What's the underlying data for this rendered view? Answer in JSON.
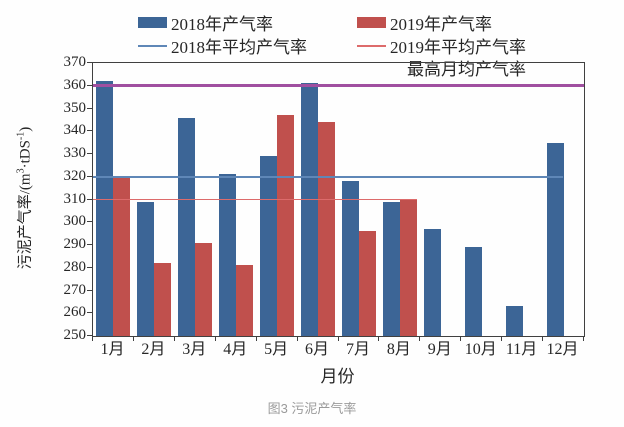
{
  "colors": {
    "bar_2018": "#3C6596",
    "bar_2019": "#C0504D",
    "avg_2018": "#5F87B7",
    "avg_2019": "#DD6B6B",
    "max_line": "#A04FA0",
    "axis": "#404040",
    "text": "#262626",
    "caption": "#9A9A9A"
  },
  "chart_data": {
    "type": "bar",
    "title": "图3 污泥产气率",
    "categories": [
      "1月",
      "2月",
      "3月",
      "4月",
      "5月",
      "6月",
      "7月",
      "8月",
      "9月",
      "10月",
      "11月",
      "12月"
    ],
    "series": [
      {
        "name": "2018年产气率",
        "kind": "bar",
        "color": "bar_2018",
        "values": [
          362,
          309,
          346,
          321,
          329,
          361,
          318,
          309,
          297,
          289,
          263,
          335
        ]
      },
      {
        "name": "2019年产气率",
        "kind": "bar",
        "color": "bar_2019",
        "values": [
          320,
          282,
          291,
          281,
          347,
          344,
          296,
          310,
          null,
          null,
          null,
          null
        ]
      },
      {
        "name": "2018年平均产气率",
        "kind": "hline",
        "color": "avg_2018",
        "value": 320,
        "span_frac": 0.958,
        "thickness": 1.5
      },
      {
        "name": "2019年平均产气率",
        "kind": "hline",
        "color": "avg_2019",
        "value": 310,
        "span_frac": 0.66,
        "thickness": 1.5
      },
      {
        "name": "最高月均产气率",
        "kind": "hline",
        "color": "max_line",
        "value": 360,
        "span_frac": 1.0,
        "thickness": 3
      }
    ],
    "xlabel": "月份",
    "ylabel": "污泥产气率/(m3·tDS-1)",
    "ylabel_parts": {
      "p1": "污泥产气率/(m",
      "s1": "3",
      "p2": "·tDS",
      "s2": "-1",
      "p3": ")"
    },
    "ylim": [
      250,
      370
    ],
    "ytick_step": 10,
    "grid": false,
    "legend_position": "top"
  },
  "caption": "图3 污泥产气率"
}
